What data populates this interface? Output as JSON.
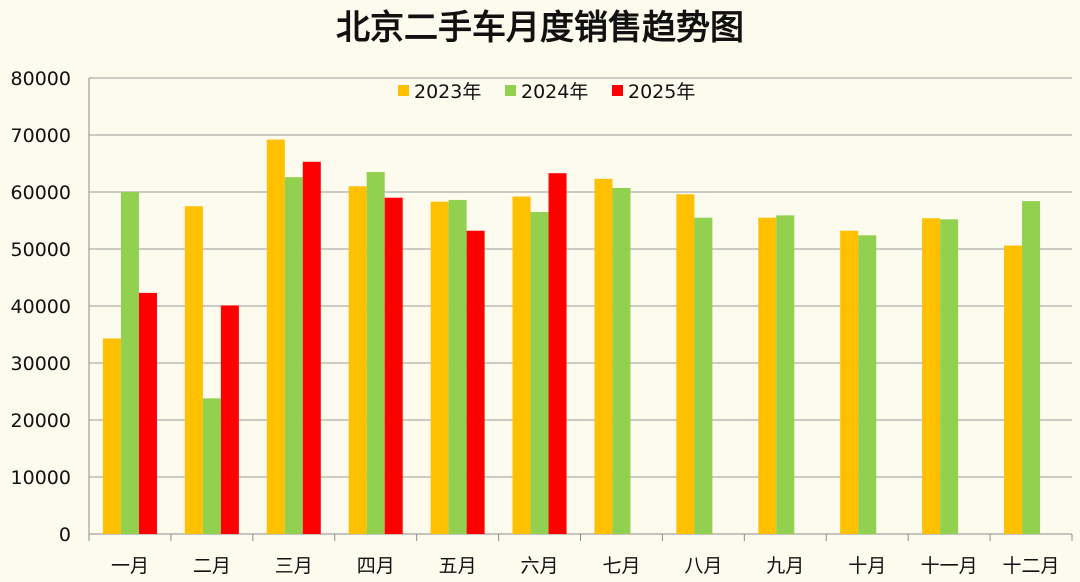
{
  "chart_data": {
    "type": "bar",
    "title": "北京二手车月度销售趋势图",
    "xlabel": "",
    "ylabel": "",
    "ylim": [
      0,
      80000
    ],
    "yticks": [
      0,
      10000,
      20000,
      30000,
      40000,
      50000,
      60000,
      70000,
      80000
    ],
    "grid": true,
    "legend_position": "top-center",
    "categories": [
      "一月",
      "二月",
      "三月",
      "四月",
      "五月",
      "六月",
      "七月",
      "八月",
      "九月",
      "十月",
      "十一月",
      "十二月"
    ],
    "series": [
      {
        "name": "2023年",
        "color": "#ffc000",
        "values": [
          34300,
          57500,
          69200,
          61000,
          58300,
          59200,
          62300,
          59600,
          55500,
          53200,
          55400,
          50600
        ]
      },
      {
        "name": "2024年",
        "color": "#92d050",
        "values": [
          60000,
          23800,
          62600,
          63500,
          58600,
          56500,
          60700,
          55500,
          55900,
          52400,
          55200,
          58400
        ]
      },
      {
        "name": "2025年",
        "color": "#ff0000",
        "values": [
          42300,
          40100,
          65300,
          59000,
          53200,
          63300,
          null,
          null,
          null,
          null,
          null,
          null
        ]
      }
    ]
  }
}
